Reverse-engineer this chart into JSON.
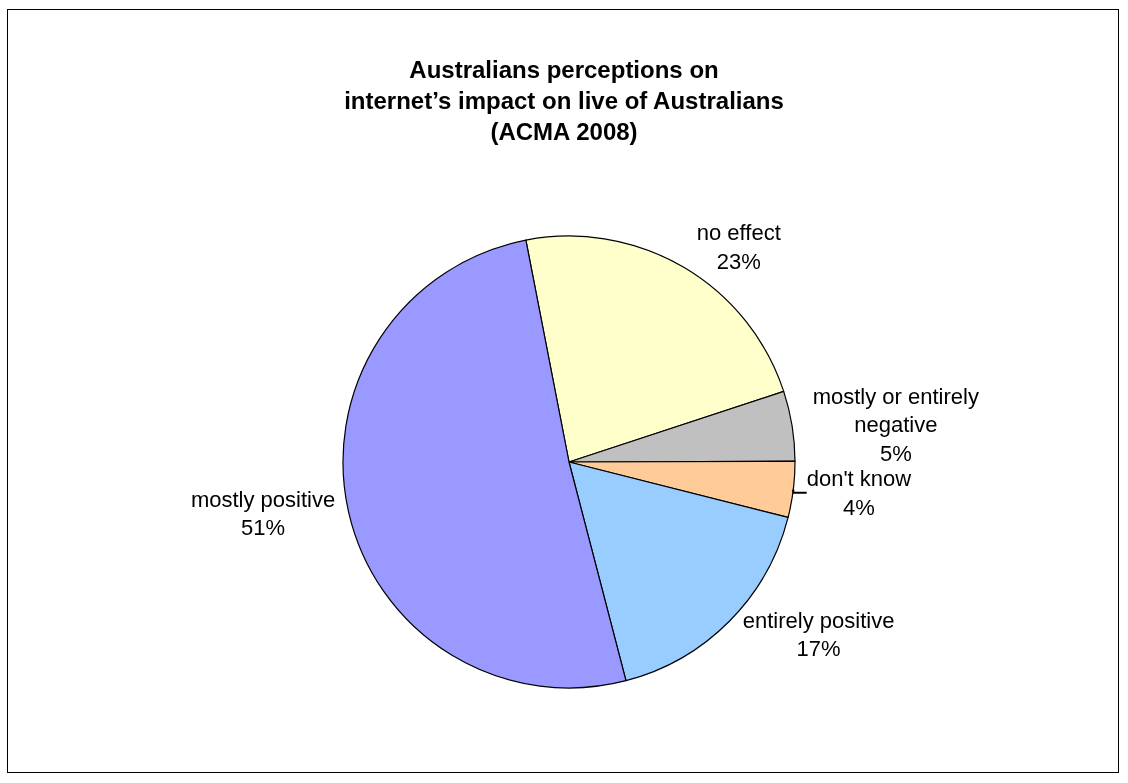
{
  "chart_data": {
    "type": "pie",
    "title": "Australians perceptions on\ninternet’s impact on live of Australians\n(ACMA 2008)",
    "categories": [
      "no effect",
      "mostly or entirely negative",
      "don't know",
      "entirely positive",
      "mostly positive"
    ],
    "values": [
      23,
      5,
      4,
      17,
      51
    ],
    "colors": [
      "#ffffcc",
      "#c0c0c0",
      "#ffcc99",
      "#99ccff",
      "#9999ff"
    ],
    "value_labels": [
      "23%",
      "5%",
      "4%",
      "17%",
      "51%"
    ]
  }
}
